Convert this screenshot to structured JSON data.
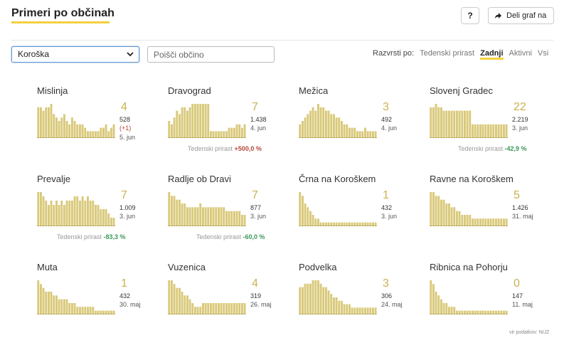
{
  "header": {
    "title": "Primeri po občinah",
    "help_label": "?",
    "share_label": "Deli graf na"
  },
  "filters": {
    "region_selected": "Koroška",
    "search_placeholder": "Poišči občino",
    "sort_label": "Razvrsti po:",
    "sort_options": [
      "Tedenski prirast",
      "Zadnji",
      "Aktivni",
      "Vsi"
    ],
    "sort_active": "Zadnji"
  },
  "colors": {
    "bar": "#d9c97a",
    "bar_dark": "#b9a443",
    "accent": "#f4d03f",
    "up": "#b5483b",
    "down": "#3b9a5a"
  },
  "growth_label": "Tedenski prirast",
  "municipalities": [
    {
      "name": "Mislinja",
      "active": "4",
      "total": "528",
      "delta": "(+1)",
      "date": "5. jun",
      "growth": "",
      "bars": [
        9,
        9,
        8,
        9,
        9,
        10,
        7,
        6,
        5,
        6,
        7,
        5,
        4,
        6,
        5,
        4,
        4,
        4,
        3,
        2,
        2,
        2,
        2,
        2,
        3,
        3,
        4,
        2,
        3,
        4
      ]
    },
    {
      "name": "Dravograd",
      "active": "7",
      "total": "1.438",
      "delta": "",
      "date": "4. jun",
      "growth": "+500,0 %",
      "growth_dir": "up",
      "bars": [
        5,
        4,
        6,
        8,
        7,
        9,
        9,
        8,
        9,
        10,
        10,
        10,
        10,
        10,
        10,
        10,
        2,
        2,
        2,
        2,
        2,
        2,
        2,
        3,
        3,
        3,
        4,
        4,
        3,
        4
      ]
    },
    {
      "name": "Mežica",
      "active": "3",
      "total": "492",
      "delta": "",
      "date": "4. jun",
      "growth": "",
      "bars": [
        4,
        5,
        6,
        7,
        8,
        9,
        8,
        10,
        9,
        9,
        8,
        8,
        7,
        7,
        6,
        6,
        5,
        4,
        4,
        3,
        3,
        3,
        2,
        2,
        2,
        3,
        2,
        2,
        2,
        2
      ]
    },
    {
      "name": "Slovenj Gradec",
      "active": "22",
      "total": "2.219",
      "date": "3. jun",
      "delta": "",
      "growth": "-42,9 %",
      "growth_dir": "down",
      "bars": [
        9,
        9,
        10,
        9,
        9,
        8,
        8,
        8,
        8,
        8,
        8,
        8,
        8,
        8,
        8,
        8,
        4,
        4,
        4,
        4,
        4,
        4,
        4,
        4,
        4,
        4,
        4,
        4,
        4,
        4
      ]
    },
    {
      "name": "Prevalje",
      "active": "7",
      "total": "1.009",
      "delta": "",
      "date": "3. jun",
      "growth": "-83,3 %",
      "growth_dir": "down",
      "bars": [
        8,
        8,
        7,
        6,
        5,
        6,
        5,
        6,
        5,
        6,
        5,
        6,
        6,
        6,
        7,
        7,
        6,
        7,
        6,
        7,
        6,
        6,
        5,
        5,
        4,
        4,
        4,
        3,
        2,
        2
      ]
    },
    {
      "name": "Radlje ob Dravi",
      "active": "7",
      "total": "877",
      "delta": "",
      "date": "3. jun",
      "growth": "-60,0 %",
      "growth_dir": "down",
      "bars": [
        9,
        8,
        8,
        7,
        7,
        6,
        6,
        5,
        5,
        5,
        5,
        5,
        6,
        5,
        5,
        5,
        5,
        5,
        5,
        5,
        5,
        5,
        4,
        4,
        4,
        4,
        4,
        4,
        3,
        3
      ]
    },
    {
      "name": "Črna na Koroškem",
      "active": "1",
      "total": "432",
      "delta": "",
      "date": "3. jun",
      "growth": "",
      "bars": [
        9,
        8,
        6,
        5,
        4,
        3,
        2,
        2,
        1,
        1,
        1,
        1,
        1,
        1,
        1,
        1,
        1,
        1,
        1,
        1,
        1,
        1,
        1,
        1,
        1,
        1,
        1,
        1,
        1,
        1
      ]
    },
    {
      "name": "Ravne na Koroškem",
      "active": "5",
      "total": "1.426",
      "delta": "",
      "date": "31. maj",
      "growth": "",
      "bars": [
        9,
        9,
        8,
        8,
        7,
        7,
        6,
        6,
        5,
        5,
        4,
        4,
        3,
        3,
        3,
        3,
        2,
        2,
        2,
        2,
        2,
        2,
        2,
        2,
        2,
        2,
        2,
        2,
        2,
        2
      ]
    },
    {
      "name": "Muta",
      "active": "1",
      "total": "432",
      "delta": "",
      "date": "30. maj",
      "growth": "",
      "bars": [
        9,
        8,
        7,
        6,
        6,
        6,
        5,
        5,
        4,
        4,
        4,
        4,
        3,
        3,
        3,
        2,
        2,
        2,
        2,
        2,
        2,
        2,
        1,
        1,
        1,
        1,
        1,
        1,
        1,
        1
      ]
    },
    {
      "name": "Vuzenica",
      "active": "4",
      "total": "319",
      "delta": "",
      "date": "26. maj",
      "growth": "",
      "bars": [
        9,
        9,
        8,
        7,
        7,
        6,
        5,
        5,
        4,
        3,
        2,
        2,
        2,
        3,
        3,
        3,
        3,
        3,
        3,
        3,
        3,
        3,
        3,
        3,
        3,
        3,
        3,
        3,
        3,
        3
      ]
    },
    {
      "name": "Podvelka",
      "active": "3",
      "total": "306",
      "delta": "",
      "date": "24. maj",
      "growth": "",
      "bars": [
        8,
        8,
        9,
        9,
        9,
        10,
        10,
        10,
        9,
        8,
        8,
        7,
        6,
        5,
        5,
        4,
        4,
        3,
        3,
        3,
        2,
        2,
        2,
        2,
        2,
        2,
        2,
        2,
        2,
        2
      ]
    },
    {
      "name": "Ribnica na Pohorju",
      "active": "0",
      "total": "147",
      "delta": "",
      "date": "11. maj",
      "growth": "",
      "bars": [
        9,
        8,
        6,
        5,
        4,
        3,
        3,
        2,
        2,
        2,
        1,
        1,
        1,
        1,
        1,
        1,
        1,
        1,
        1,
        1,
        1,
        1,
        1,
        1,
        1,
        1,
        1,
        1,
        1,
        1
      ]
    }
  ],
  "credit": "vir podatkov: NIJZ"
}
